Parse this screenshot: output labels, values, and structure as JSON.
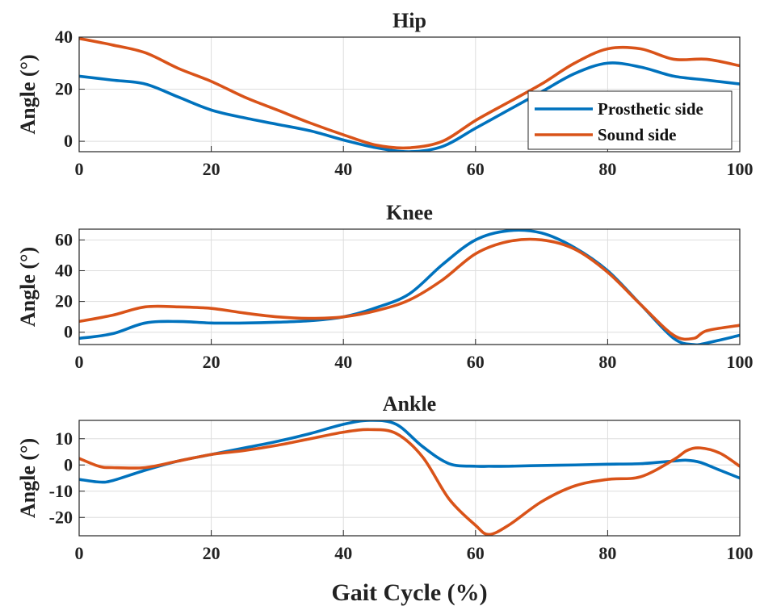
{
  "chart_data": [
    {
      "type": "line",
      "title": "Hip",
      "xlabel": "",
      "ylabel": "Angle (°)",
      "xlim": [
        0,
        100
      ],
      "ylim": [
        -4,
        40
      ],
      "xticks": [
        "0",
        "20",
        "40",
        "60",
        "80",
        "100"
      ],
      "yticks": [
        "0",
        "20",
        "40"
      ],
      "ytick_values": [
        0,
        20,
        40
      ],
      "grid": true,
      "legend": {
        "position": "bottom-right",
        "entries": [
          "Prosthetic side",
          "Sound side"
        ]
      },
      "x": [
        0,
        5,
        10,
        15,
        20,
        25,
        30,
        35,
        40,
        45,
        50,
        55,
        60,
        65,
        70,
        75,
        80,
        85,
        90,
        95,
        100
      ],
      "series": [
        {
          "name": "Prosthetic side",
          "color": "#0072BD",
          "values": [
            25,
            23.5,
            22,
            17,
            12,
            9,
            6.5,
            4,
            0.5,
            -2.5,
            -4,
            -2,
            5,
            12,
            19,
            26,
            30,
            28.5,
            25,
            23.5,
            22
          ]
        },
        {
          "name": "Sound side",
          "color": "#D95319",
          "values": [
            39.5,
            37,
            34,
            28,
            23,
            17,
            12,
            7,
            2.5,
            -1.5,
            -2.5,
            0,
            8,
            15,
            22,
            30,
            35.5,
            35.5,
            31.5,
            31.5,
            29
          ]
        }
      ]
    },
    {
      "type": "line",
      "title": "Knee",
      "xlabel": "",
      "ylabel": "Angle (°)",
      "xlim": [
        0,
        100
      ],
      "ylim": [
        -8,
        67
      ],
      "xticks": [
        "0",
        "20",
        "40",
        "60",
        "80",
        "100"
      ],
      "yticks": [
        "0",
        "20",
        "40",
        "60"
      ],
      "ytick_values": [
        0,
        20,
        40,
        60
      ],
      "grid": true,
      "x": [
        0,
        5,
        10,
        15,
        20,
        25,
        30,
        35,
        40,
        45,
        50,
        55,
        60,
        65,
        70,
        75,
        80,
        85,
        90,
        93,
        95,
        100
      ],
      "series": [
        {
          "name": "Prosthetic side",
          "color": "#0072BD",
          "values": [
            -4,
            -1,
            6,
            7,
            6,
            6,
            6.5,
            7.5,
            10,
            16,
            25,
            44,
            60,
            66,
            64.5,
            55,
            40,
            18,
            -4,
            -8,
            -7,
            -2
          ]
        },
        {
          "name": "Sound side",
          "color": "#D95319",
          "values": [
            7,
            11,
            16.5,
            16.5,
            15.5,
            12.5,
            10,
            9,
            10,
            14,
            21,
            34,
            51,
            59,
            60,
            54,
            39,
            18,
            -2,
            -4,
            1,
            4.5
          ]
        }
      ]
    },
    {
      "type": "line",
      "title": "Ankle",
      "xlabel": "Gait Cycle (%)",
      "ylabel": "Angle (°)",
      "xlim": [
        0,
        100
      ],
      "ylim": [
        -27,
        17
      ],
      "xticks": [
        "0",
        "20",
        "40",
        "60",
        "80",
        "100"
      ],
      "yticks": [
        "10",
        "0",
        "-10",
        "-20"
      ],
      "ytick_values": [
        10,
        0,
        -10,
        -20
      ],
      "grid": true,
      "x": [
        0,
        3,
        5,
        10,
        15,
        20,
        25,
        30,
        35,
        40,
        44,
        48,
        52,
        56,
        60,
        62,
        65,
        70,
        75,
        80,
        85,
        90,
        92,
        94,
        97,
        100
      ],
      "series": [
        {
          "name": "Prosthetic side",
          "color": "#0072BD",
          "values": [
            -5.5,
            -6.5,
            -6,
            -2,
            1.5,
            4,
            6.5,
            9,
            12,
            15.5,
            17,
            15.5,
            7,
            0.5,
            -0.5,
            -0.5,
            -0.5,
            -0.2,
            0,
            0.3,
            0.5,
            1.5,
            1.8,
            1,
            -2,
            -5
          ]
        },
        {
          "name": "Sound side",
          "color": "#D95319",
          "values": [
            2.5,
            -0.5,
            -1,
            -1,
            1.5,
            4,
            5.5,
            7.5,
            10,
            12.5,
            13.5,
            12,
            3,
            -13,
            -23,
            -26.5,
            -23,
            -14,
            -8,
            -5.5,
            -4.5,
            2,
            5.5,
            6.5,
            4.5,
            -0.5
          ]
        }
      ]
    }
  ]
}
